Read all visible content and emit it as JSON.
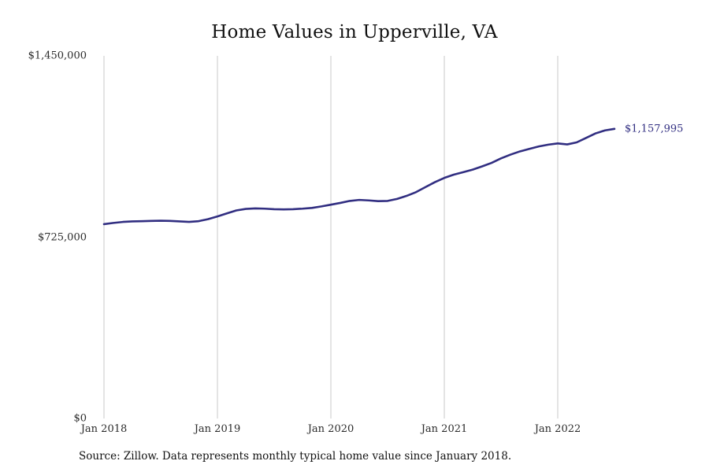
{
  "page": {
    "source_note": "Source: Zillow. Data represents monthly typical home value since January 2018."
  },
  "chart_data": {
    "type": "line",
    "title": "Home Values in Upperville, VA",
    "xlabel": "",
    "ylabel": "",
    "ylim": [
      0,
      1450000
    ],
    "grid": "vertical-only",
    "legend": "none",
    "line_color": "#312e81",
    "end_label": "$1,157,995",
    "end_value": 1157995,
    "x_start": "Jan 2018",
    "x_interval": "monthly",
    "months": [
      "2018-01",
      "2018-02",
      "2018-03",
      "2018-04",
      "2018-05",
      "2018-06",
      "2018-07",
      "2018-08",
      "2018-09",
      "2018-10",
      "2018-11",
      "2018-12",
      "2019-01",
      "2019-02",
      "2019-03",
      "2019-04",
      "2019-05",
      "2019-06",
      "2019-07",
      "2019-08",
      "2019-09",
      "2019-10",
      "2019-11",
      "2019-12",
      "2020-01",
      "2020-02",
      "2020-03",
      "2020-04",
      "2020-05",
      "2020-06",
      "2020-07",
      "2020-08",
      "2020-09",
      "2020-10",
      "2020-11",
      "2020-12",
      "2021-01",
      "2021-02",
      "2021-03",
      "2021-04",
      "2021-05",
      "2021-06",
      "2021-07",
      "2021-08",
      "2021-09",
      "2021-10",
      "2021-11",
      "2021-12",
      "2022-01",
      "2022-02",
      "2022-03",
      "2022-04",
      "2022-05",
      "2022-06",
      "2022-07"
    ],
    "values": [
      777000,
      782000,
      786000,
      788000,
      789000,
      790000,
      791000,
      790000,
      788000,
      786000,
      789000,
      797000,
      808000,
      820000,
      832000,
      838000,
      840000,
      839000,
      837000,
      836000,
      837000,
      839000,
      842000,
      848000,
      855000,
      862000,
      870000,
      874000,
      872000,
      869000,
      870000,
      878000,
      890000,
      905000,
      925000,
      945000,
      962000,
      975000,
      985000,
      995000,
      1008000,
      1022000,
      1040000,
      1055000,
      1068000,
      1078000,
      1088000,
      1095000,
      1100000,
      1096000,
      1104000,
      1122000,
      1140000,
      1152000,
      1157995
    ],
    "y_ticks": [
      {
        "value": 1450000,
        "label": "$1,450,000"
      },
      {
        "value": 725000,
        "label": "$725,000"
      },
      {
        "value": 0,
        "label": "$0"
      }
    ],
    "x_ticks": [
      {
        "month_index": 0,
        "label": "Jan 2018"
      },
      {
        "month_index": 12,
        "label": "Jan 2019"
      },
      {
        "month_index": 24,
        "label": "Jan 2020"
      },
      {
        "month_index": 36,
        "label": "Jan 2021"
      },
      {
        "month_index": 48,
        "label": "Jan 2022"
      }
    ]
  }
}
